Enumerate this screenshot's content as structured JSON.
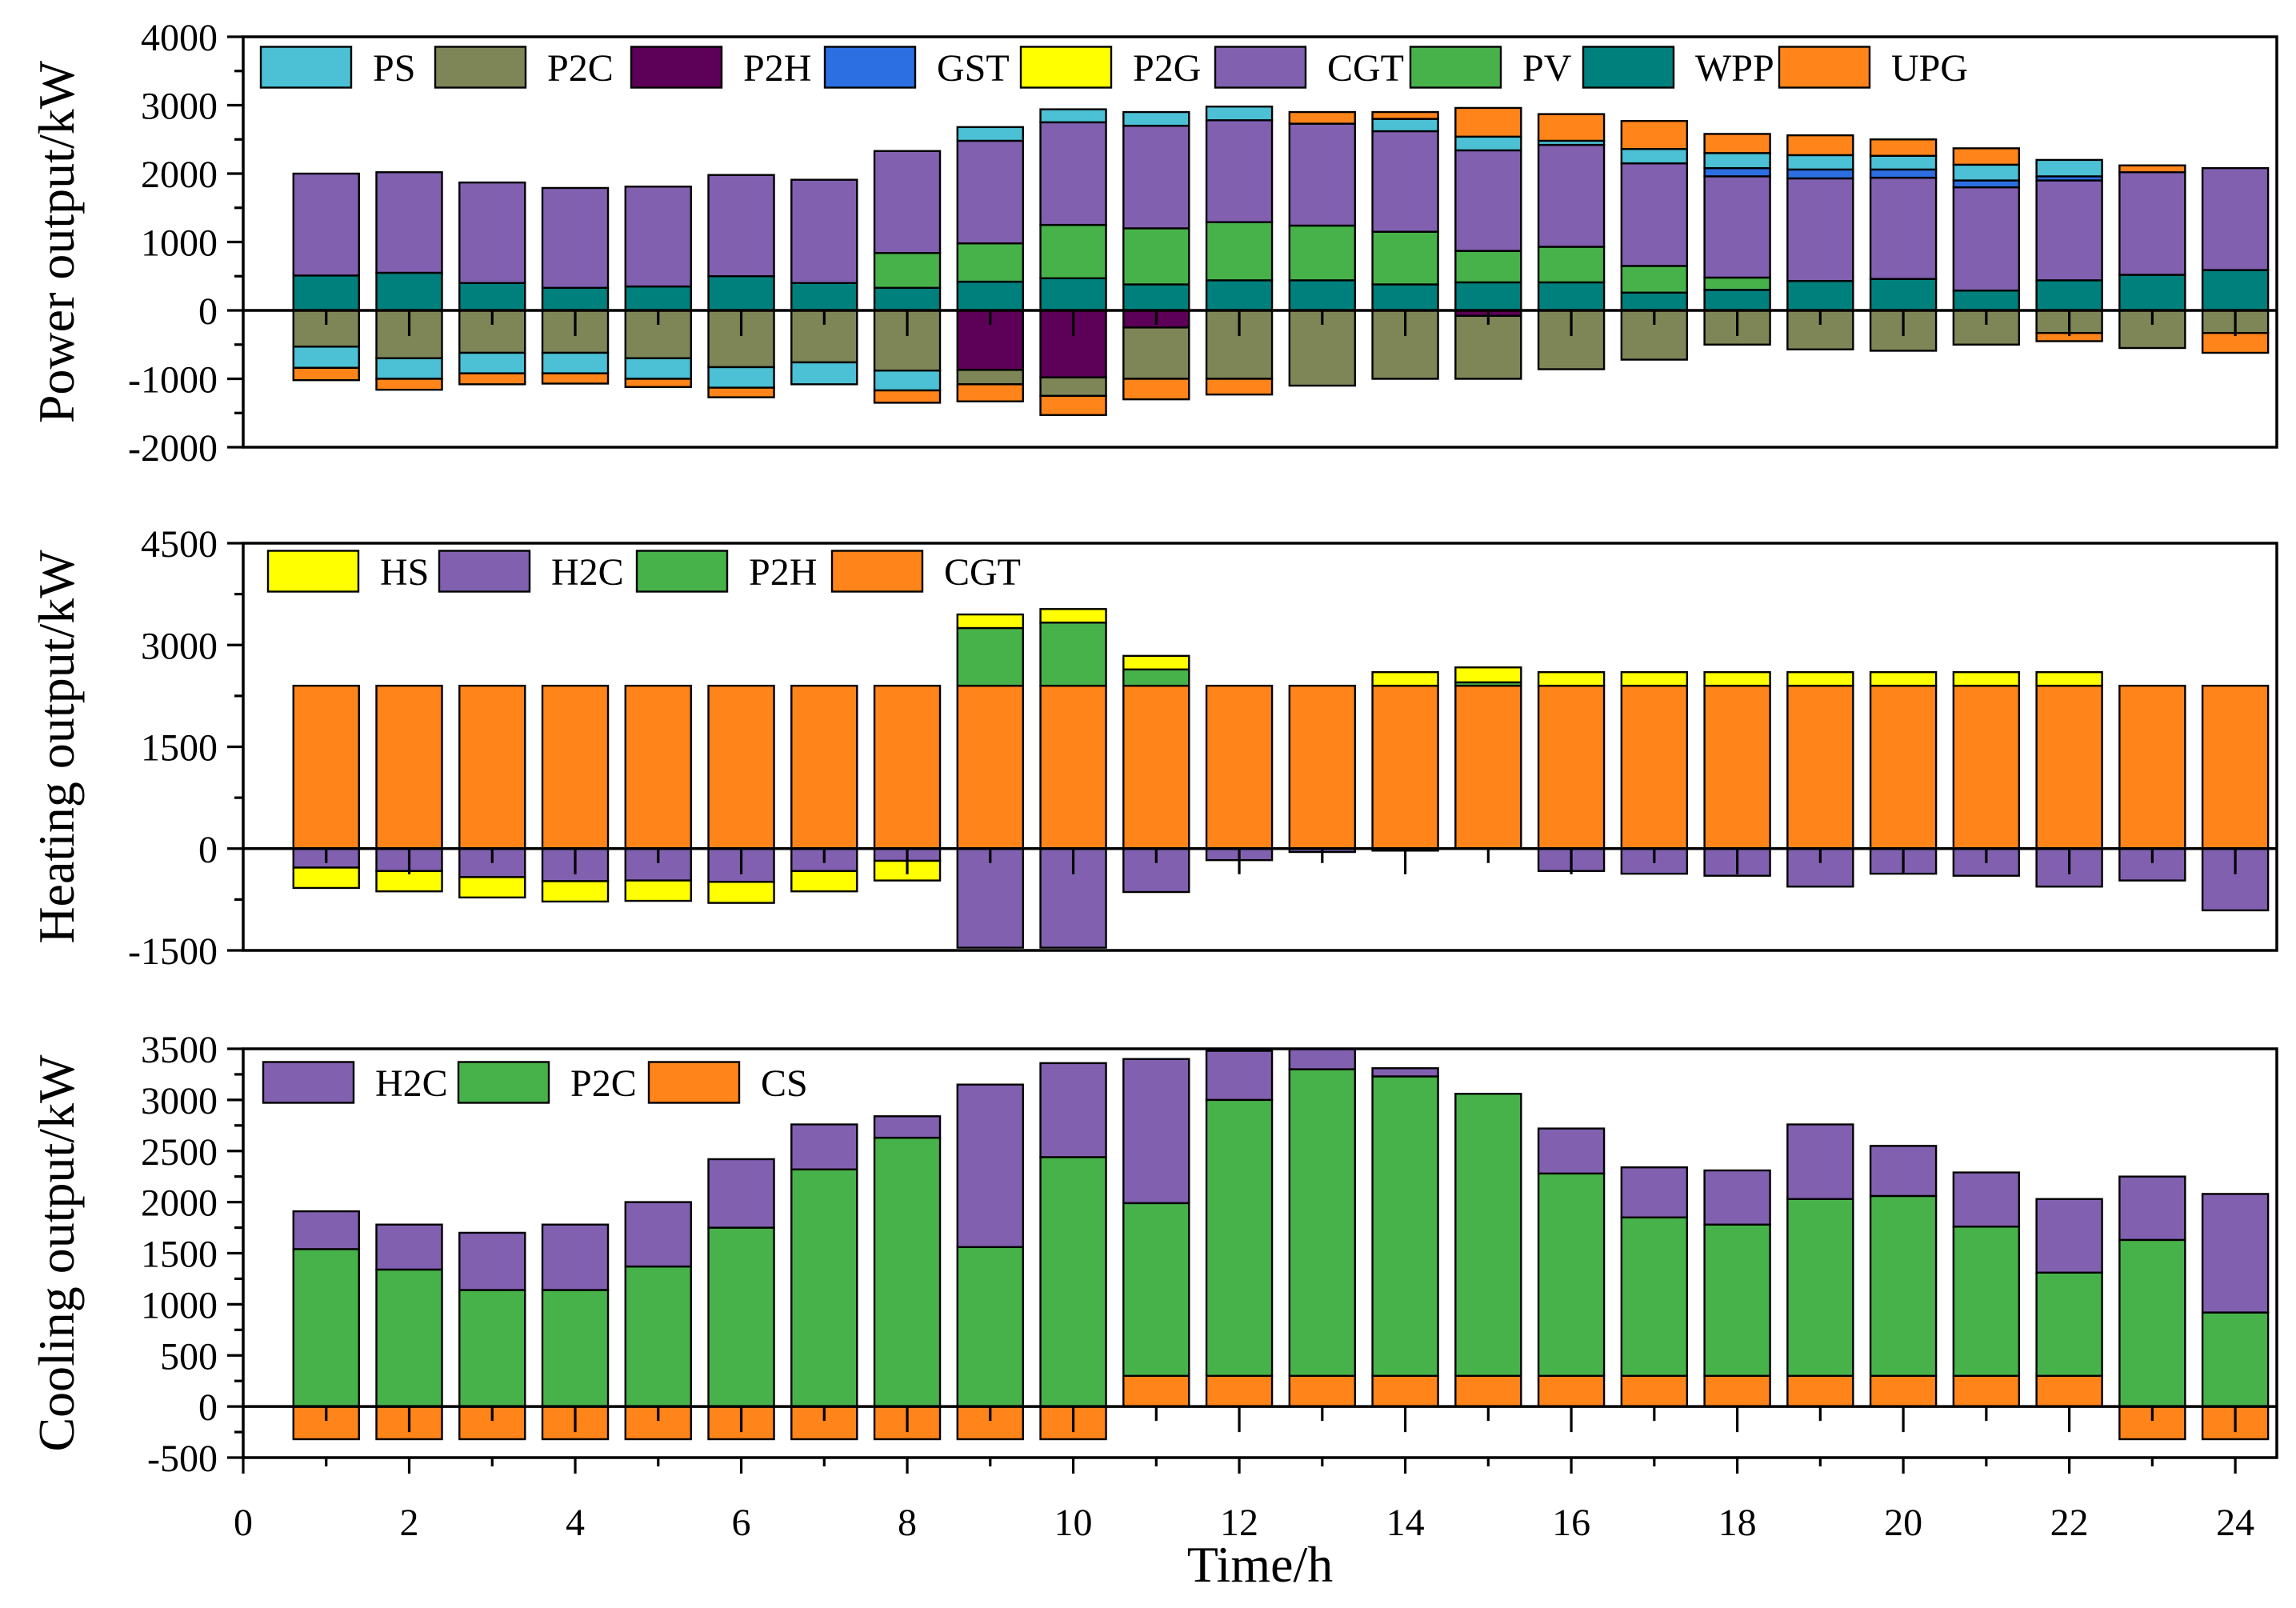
{
  "chart_data": [
    {
      "type": "bar",
      "stacked": true,
      "ylabel": "Power output/kW",
      "ylim": [
        -2000,
        4000
      ],
      "xlim": [
        0,
        24.5
      ],
      "yticks": [
        -2000,
        -1000,
        0,
        1000,
        2000,
        3000,
        4000
      ],
      "x": [
        1,
        2,
        3,
        4,
        5,
        6,
        7,
        8,
        9,
        10,
        11,
        12,
        13,
        14,
        15,
        16,
        17,
        18,
        19,
        20,
        21,
        22,
        23,
        24
      ],
      "series": [
        {
          "name": "PS",
          "color": "#4cc0d4",
          "values": [
            -310,
            -300,
            -300,
            -300,
            -300,
            -300,
            -320,
            -290,
            200,
            190,
            200,
            200,
            0,
            180,
            200,
            60,
            210,
            220,
            210,
            200,
            230,
            240,
            0,
            0
          ]
        },
        {
          "name": "P2C",
          "color": "#7e8657",
          "values": [
            -530,
            -700,
            -620,
            -620,
            -700,
            -830,
            -760,
            -880,
            -210,
            -270,
            -750,
            -1000,
            -1100,
            -1000,
            -920,
            -860,
            -720,
            -500,
            -570,
            -590,
            -500,
            -330,
            -550,
            -330
          ]
        },
        {
          "name": "P2H",
          "color": "#5c0058",
          "values": [
            0,
            0,
            0,
            0,
            0,
            0,
            0,
            0,
            -870,
            -980,
            -250,
            0,
            0,
            0,
            -80,
            0,
            0,
            0,
            0,
            0,
            0,
            0,
            0,
            0
          ]
        },
        {
          "name": "GST",
          "color": "#2b6fe3",
          "values": [
            0,
            0,
            0,
            0,
            0,
            0,
            0,
            0,
            0,
            0,
            0,
            0,
            0,
            0,
            0,
            0,
            0,
            120,
            130,
            120,
            100,
            60,
            0,
            0
          ]
        },
        {
          "name": "P2G",
          "color": "#ffff00",
          "values": [
            0,
            0,
            0,
            0,
            0,
            0,
            0,
            0,
            0,
            0,
            0,
            0,
            0,
            0,
            0,
            0,
            0,
            0,
            0,
            0,
            0,
            0,
            0,
            0
          ]
        },
        {
          "name": "CGT",
          "color": "#8160b0",
          "values": [
            1490,
            1470,
            1470,
            1460,
            1460,
            1480,
            1510,
            1490,
            1500,
            1500,
            1500,
            1490,
            1490,
            1470,
            1470,
            1490,
            1500,
            1480,
            1500,
            1480,
            1510,
            1460,
            1500,
            1490
          ]
        },
        {
          "name": "PV",
          "color": "#48b24a",
          "values": [
            0,
            0,
            0,
            0,
            0,
            0,
            0,
            510,
            560,
            780,
            820,
            850,
            800,
            770,
            460,
            520,
            390,
            180,
            0,
            0,
            0,
            0,
            0,
            0
          ]
        },
        {
          "name": "WPP",
          "color": "#00807d",
          "values": [
            510,
            550,
            400,
            330,
            350,
            500,
            400,
            330,
            420,
            470,
            380,
            440,
            440,
            380,
            410,
            410,
            260,
            300,
            430,
            460,
            290,
            440,
            520,
            590
          ]
        },
        {
          "name": "UPG",
          "color": "#ff8419",
          "values": [
            -180,
            -160,
            -160,
            -150,
            -120,
            -140,
            0,
            -180,
            -250,
            -280,
            -300,
            -230,
            170,
            100,
            420,
            390,
            410,
            280,
            290,
            240,
            240,
            -120,
            100,
            -290
          ]
        }
      ]
    },
    {
      "type": "bar",
      "stacked": true,
      "ylabel": "Heating output/kW",
      "ylim": [
        -1500,
        4500
      ],
      "xlim": [
        0,
        24.5
      ],
      "yticks": [
        -1500,
        0,
        1500,
        3000,
        4500
      ],
      "x": [
        1,
        2,
        3,
        4,
        5,
        6,
        7,
        8,
        9,
        10,
        11,
        12,
        13,
        14,
        15,
        16,
        17,
        18,
        19,
        20,
        21,
        22,
        23,
        24
      ],
      "series": [
        {
          "name": "HS",
          "color": "#ffff00",
          "values": [
            -300,
            -300,
            -300,
            -300,
            -300,
            -310,
            -300,
            -290,
            200,
            200,
            200,
            0,
            0,
            200,
            220,
            200,
            200,
            200,
            200,
            200,
            200,
            200,
            0,
            0
          ]
        },
        {
          "name": "H2C",
          "color": "#8160b0",
          "values": [
            -280,
            -330,
            -420,
            -480,
            -470,
            -490,
            -330,
            -180,
            -1460,
            -1460,
            -640,
            -170,
            -50,
            -30,
            0,
            -330,
            -370,
            -400,
            -560,
            -370,
            -400,
            -560,
            -470,
            -910
          ]
        },
        {
          "name": "P2H",
          "color": "#48b24a",
          "values": [
            0,
            0,
            0,
            0,
            0,
            0,
            0,
            0,
            850,
            930,
            240,
            0,
            0,
            0,
            50,
            0,
            0,
            0,
            0,
            0,
            0,
            0,
            0,
            0
          ]
        },
        {
          "name": "CGT",
          "color": "#ff8419",
          "values": [
            2400,
            2400,
            2400,
            2400,
            2400,
            2400,
            2400,
            2400,
            2400,
            2400,
            2400,
            2400,
            2400,
            2400,
            2400,
            2400,
            2400,
            2400,
            2400,
            2400,
            2400,
            2400,
            2400,
            2400
          ]
        }
      ]
    },
    {
      "type": "bar",
      "stacked": true,
      "ylabel": "Cooling output/kW",
      "xlabel": "Time/h",
      "ylim": [
        -500,
        3500
      ],
      "xlim": [
        0,
        24.5
      ],
      "yticks": [
        -500,
        0,
        500,
        1000,
        1500,
        2000,
        2500,
        3000,
        3500
      ],
      "xticks": [
        0,
        2,
        4,
        6,
        8,
        10,
        12,
        14,
        16,
        18,
        20,
        22,
        24
      ],
      "x": [
        1,
        2,
        3,
        4,
        5,
        6,
        7,
        8,
        9,
        10,
        11,
        12,
        13,
        14,
        15,
        16,
        17,
        18,
        19,
        20,
        21,
        22,
        23,
        24
      ],
      "series": [
        {
          "name": "H2C",
          "color": "#8160b0",
          "values": [
            370,
            440,
            560,
            640,
            630,
            670,
            440,
            210,
            1590,
            920,
            1410,
            480,
            200,
            80,
            0,
            440,
            490,
            530,
            730,
            490,
            530,
            720,
            620,
            1160
          ]
        },
        {
          "name": "P2C",
          "color": "#48b24a",
          "values": [
            1540,
            1340,
            1140,
            1140,
            1370,
            1750,
            2320,
            2630,
            1560,
            2440,
            1690,
            2700,
            3000,
            2930,
            2760,
            1980,
            1550,
            1480,
            1730,
            1760,
            1460,
            1010,
            1630,
            920
          ]
        },
        {
          "name": "CS",
          "color": "#ff8419",
          "values": [
            -320,
            -320,
            -320,
            -320,
            -320,
            -320,
            -320,
            -320,
            -320,
            -320,
            300,
            300,
            300,
            300,
            300,
            300,
            300,
            300,
            300,
            300,
            300,
            300,
            -320,
            -320
          ]
        }
      ]
    }
  ]
}
